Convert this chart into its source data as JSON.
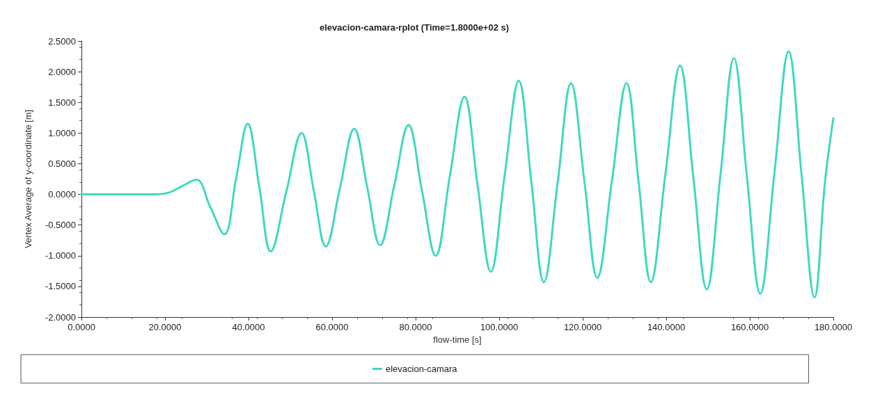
{
  "chart_data": {
    "type": "line",
    "title": "elevacion-camara-rplot (Time=1.8000e+02 s)",
    "xlabel": "flow-time [s]",
    "ylabel": "Vertex Average of y-coordinate [m]",
    "series": [
      {
        "name": "elevacion-camara",
        "color": "#40d9c0",
        "x": [
          0,
          10,
          18,
          21,
          24,
          27.5,
          30.8,
          34.2,
          37,
          39.8,
          42.6,
          45.3,
          49,
          52.7,
          55.6,
          58.5,
          61.9,
          65.3,
          68.4,
          71.5,
          74.9,
          78.3,
          81.5,
          84.8,
          88.2,
          91.7,
          94.8,
          98,
          101.3,
          104.7,
          107.7,
          110.7,
          114,
          117.2,
          120.4,
          123.5,
          127,
          130.5,
          133.4,
          136.3,
          139.8,
          143.3,
          146.5,
          149.7,
          153,
          156.2,
          159.3,
          162.5,
          165.9,
          169.3,
          172.4,
          175.5,
          178,
          180
        ],
        "values": [
          0,
          0,
          0,
          0.03,
          0.13,
          0.24,
          -0.2,
          -0.65,
          0.25,
          1.15,
          0.11,
          -0.93,
          0.03,
          1.0,
          0.07,
          -0.85,
          0.11,
          1.07,
          0.12,
          -0.83,
          0.15,
          1.13,
          0.07,
          -1.0,
          0.3,
          1.59,
          0.17,
          -1.26,
          0.3,
          1.85,
          0.21,
          -1.43,
          0.19,
          1.81,
          0.22,
          -1.36,
          0.22,
          1.81,
          0.19,
          -1.43,
          0.33,
          2.1,
          0.27,
          -1.55,
          0.33,
          2.22,
          0.3,
          -1.62,
          0.35,
          2.33,
          0.32,
          -1.68,
          0.2,
          1.24
        ]
      }
    ],
    "xlim": [
      0,
      180
    ],
    "xticks": [
      {
        "value": 0,
        "label": "0.0000"
      },
      {
        "value": 20,
        "label": "20.0000"
      },
      {
        "value": 40,
        "label": "40.0000"
      },
      {
        "value": 60,
        "label": "60.0000"
      },
      {
        "value": 80,
        "label": "80.0000"
      },
      {
        "value": 100,
        "label": "100.0000"
      },
      {
        "value": 120,
        "label": "120.0000"
      },
      {
        "value": 140,
        "label": "140.0000"
      },
      {
        "value": 160,
        "label": "160.0000"
      },
      {
        "value": 180,
        "label": "180.0000"
      }
    ],
    "ylim": [
      -2,
      2.5
    ],
    "yticks": [
      {
        "value": -2,
        "label": "-2.0000"
      },
      {
        "value": -1.5,
        "label": "-1.5000"
      },
      {
        "value": -1,
        "label": "-1.0000"
      },
      {
        "value": -0.5,
        "label": "-0.5000"
      },
      {
        "value": 0,
        "label": "0.0000"
      },
      {
        "value": 0.5,
        "label": "0.5000"
      },
      {
        "value": 1,
        "label": "1.0000"
      },
      {
        "value": 1.5,
        "label": "1.5000"
      },
      {
        "value": 2,
        "label": "2.0000"
      },
      {
        "value": 2.5,
        "label": "2.5000"
      }
    ],
    "grid": false,
    "legend": "bottom",
    "marker": "none",
    "line_style": "solid"
  }
}
